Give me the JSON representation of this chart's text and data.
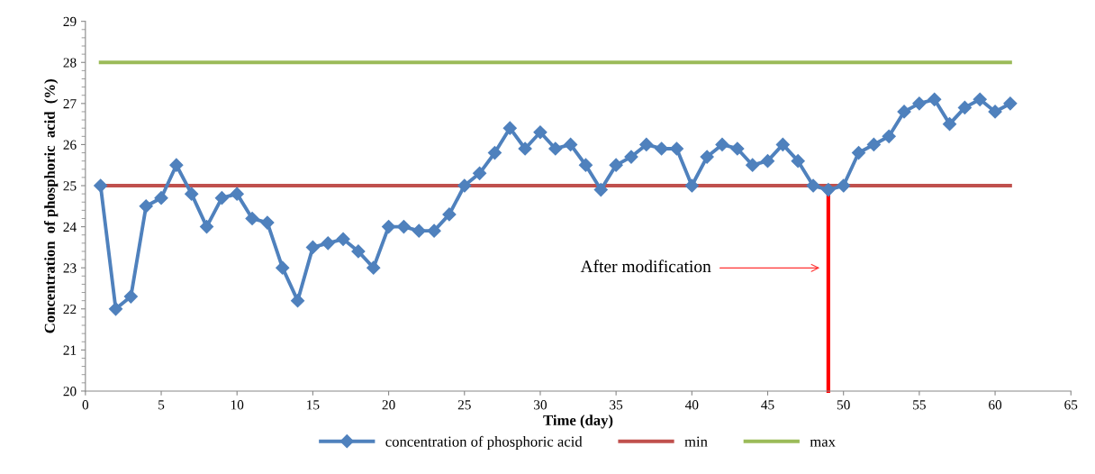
{
  "chart_data": {
    "type": "line",
    "xlabel": "Time (day)",
    "ylabel": "Concentration  of phosphoric  acid  (%)",
    "xlim": [
      0,
      65
    ],
    "xticks": [
      0,
      5,
      10,
      15,
      20,
      25,
      30,
      35,
      40,
      45,
      50,
      55,
      60,
      65
    ],
    "ylim": [
      20,
      29
    ],
    "yticks": [
      20,
      21,
      22,
      23,
      24,
      25,
      26,
      27,
      28,
      29
    ],
    "grid": false,
    "legend": "bottom",
    "series": [
      {
        "name": "concentration of phosphoric acid",
        "color": "#4f81bd",
        "marker": "diamond",
        "x": [
          1,
          2,
          3,
          4,
          5,
          6,
          7,
          8,
          9,
          10,
          11,
          12,
          13,
          14,
          15,
          16,
          17,
          18,
          19,
          20,
          21,
          22,
          23,
          24,
          25,
          26,
          27,
          28,
          29,
          30,
          31,
          32,
          33,
          34,
          35,
          36,
          37,
          38,
          39,
          40,
          41,
          42,
          43,
          44,
          45,
          46,
          47,
          48,
          49,
          50,
          51,
          52,
          53,
          54,
          55,
          56,
          57,
          58,
          59,
          60,
          61
        ],
        "values": [
          25,
          22,
          22.3,
          24.5,
          24.7,
          25.5,
          24.8,
          24,
          24.7,
          24.8,
          24.2,
          24.1,
          23,
          22.2,
          23.5,
          23.6,
          23.7,
          23.4,
          23,
          24,
          24,
          23.9,
          23.9,
          24.3,
          25,
          25.3,
          25.8,
          26.4,
          25.9,
          26.3,
          25.9,
          26,
          25.5,
          24.9,
          25.5,
          25.7,
          26,
          25.9,
          25.9,
          25,
          25.7,
          26,
          25.9,
          25.5,
          25.6,
          26,
          25.6,
          25,
          24.9,
          25,
          25.8,
          26,
          26.2,
          26.8,
          27,
          27.1,
          26.5,
          26.9,
          27.1,
          26.8,
          27
        ]
      },
      {
        "name": "min",
        "color": "#c0504d",
        "marker": "none",
        "x": [
          1,
          61
        ],
        "values": [
          25,
          25
        ]
      },
      {
        "name": "max",
        "color": "#9bbb59",
        "marker": "none",
        "x": [
          1,
          61
        ],
        "values": [
          28,
          28
        ]
      },
      {
        "color": "#ff0000",
        "marker": "none",
        "x": [
          49,
          49
        ],
        "values": [
          20,
          24.9
        ]
      }
    ],
    "annotations": [
      "After modification"
    ]
  }
}
